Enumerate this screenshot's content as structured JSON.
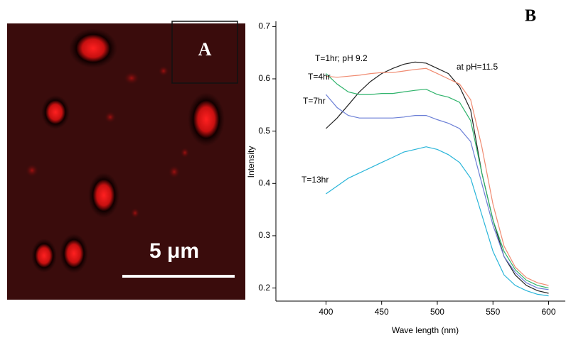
{
  "panel_a": {
    "label": "A",
    "scale_bar": "5 μm"
  },
  "chart_data": {
    "type": "line",
    "title": "B",
    "x_label": "Wave length (nm)",
    "y_label": "Intensity",
    "annotations": [
      "T=1hr; pH 9.2",
      "at pH=11.5",
      "T=4hr",
      "T=7hr",
      "T=13hr"
    ],
    "x": [
      400,
      410,
      420,
      430,
      440,
      450,
      460,
      470,
      480,
      490,
      500,
      510,
      520,
      530,
      540,
      550,
      560,
      570,
      580,
      590,
      600
    ],
    "series": [
      {
        "color": "#222222",
        "values": [
          0.505,
          0.525,
          0.55,
          0.575,
          0.595,
          0.61,
          0.62,
          0.628,
          0.632,
          0.63,
          0.62,
          0.61,
          0.585,
          0.54,
          0.42,
          0.33,
          0.26,
          0.225,
          0.205,
          0.195,
          0.19
        ]
      },
      {
        "color": "#f08a70",
        "values": [
          0.605,
          0.603,
          0.605,
          0.607,
          0.61,
          0.612,
          0.612,
          0.615,
          0.618,
          0.62,
          0.61,
          0.6,
          0.59,
          0.56,
          0.47,
          0.36,
          0.28,
          0.24,
          0.22,
          0.21,
          0.205
        ]
      },
      {
        "color": "#2fb36b",
        "values": [
          0.61,
          0.59,
          0.575,
          0.57,
          0.57,
          0.572,
          0.572,
          0.575,
          0.578,
          0.58,
          0.57,
          0.565,
          0.555,
          0.52,
          0.42,
          0.33,
          0.27,
          0.235,
          0.215,
          0.205,
          0.2
        ]
      },
      {
        "color": "#6b7fd6",
        "values": [
          0.57,
          0.545,
          0.53,
          0.525,
          0.525,
          0.525,
          0.525,
          0.527,
          0.53,
          0.53,
          0.522,
          0.515,
          0.505,
          0.48,
          0.4,
          0.32,
          0.26,
          0.23,
          0.21,
          0.2,
          0.197
        ]
      },
      {
        "color": "#29b5d9",
        "values": [
          0.38,
          0.395,
          0.41,
          0.42,
          0.43,
          0.44,
          0.45,
          0.46,
          0.465,
          0.47,
          0.465,
          0.455,
          0.44,
          0.41,
          0.34,
          0.27,
          0.225,
          0.205,
          0.195,
          0.188,
          0.185
        ]
      }
    ],
    "xlim": [
      355,
      615
    ],
    "ylim": [
      0.175,
      0.71
    ],
    "xticks": [
      400,
      450,
      500,
      550,
      600
    ],
    "yticks": [
      0.2,
      0.3,
      0.4,
      0.5,
      0.6,
      0.7
    ]
  }
}
